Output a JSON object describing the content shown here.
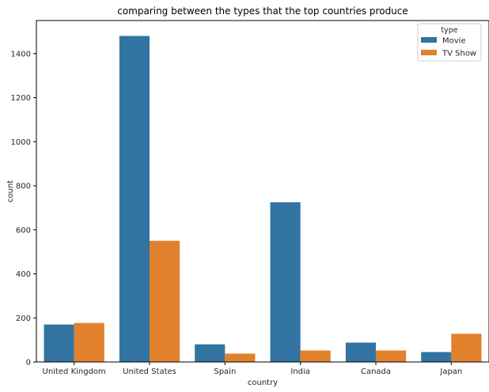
{
  "chart_data": {
    "type": "bar",
    "title": "comparing between the types that the top countries produce",
    "xlabel": "country",
    "ylabel": "count",
    "categories": [
      "United Kingdom",
      "United States",
      "Spain",
      "India",
      "Canada",
      "Japan"
    ],
    "series": [
      {
        "name": "Movie",
        "values": [
          170,
          1480,
          80,
          725,
          88,
          45
        ],
        "color": "#3274a1"
      },
      {
        "name": "TV Show",
        "values": [
          177,
          550,
          38,
          52,
          52,
          128
        ],
        "color": "#e1812c"
      }
    ],
    "ylim": [
      0,
      1550
    ],
    "yticks": [
      0,
      200,
      400,
      600,
      800,
      1000,
      1200,
      1400
    ],
    "legend": {
      "title": "type",
      "placement": "top-right"
    },
    "grid": false
  }
}
